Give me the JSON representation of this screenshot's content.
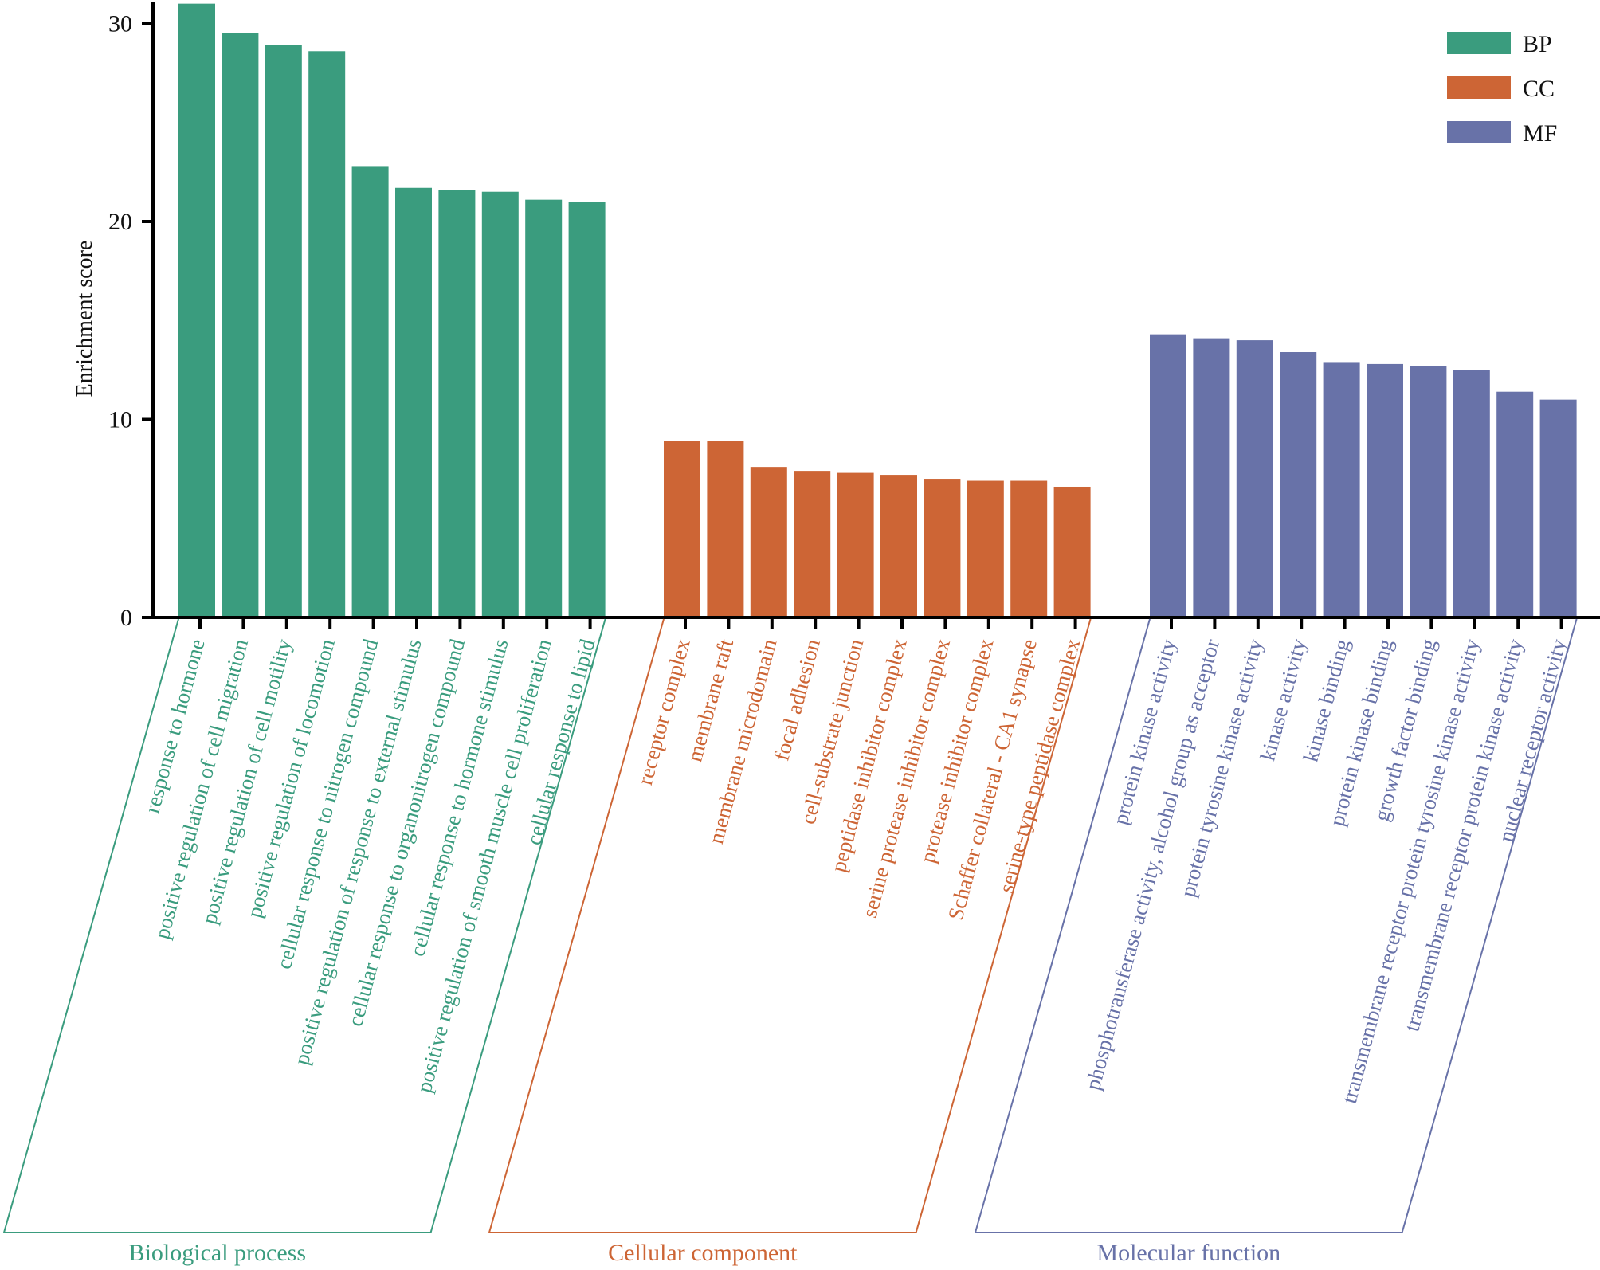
{
  "chart_data": {
    "type": "bar",
    "title": "",
    "xlabel": "",
    "ylabel": "Enrichment score",
    "ylim": [
      0,
      31
    ],
    "yticks": [
      0,
      10,
      20,
      30
    ],
    "grid": false,
    "legend": {
      "position": "top-right",
      "entries": [
        {
          "key": "BP",
          "label": "BP",
          "color": "#3a9c7e"
        },
        {
          "key": "CC",
          "label": "CC",
          "color": "#cd6535"
        },
        {
          "key": "MF",
          "label": "MF",
          "color": "#6872a8"
        }
      ]
    },
    "groups": [
      {
        "key": "BP",
        "name": "Biological process",
        "color": "#3a9c7e",
        "categories": [
          "response to hormone",
          "positive regulation of cell migration",
          "positive regulation of cell motility",
          "positive regulation of locomotion",
          "cellular response to nitrogen compound",
          "positive regulation of response to external stimulus",
          "cellular response to organonitrogen compound",
          "cellular response to hormone stimulus",
          "positive regulation of smooth muscle cell proliferation",
          "cellular response to lipid"
        ],
        "values": [
          31.0,
          29.5,
          28.9,
          28.6,
          22.8,
          21.7,
          21.6,
          21.5,
          21.1,
          21.0
        ]
      },
      {
        "key": "CC",
        "name": "Cellular component",
        "color": "#cd6535",
        "categories": [
          "receptor complex",
          "membrane raft",
          "membrane microdomain",
          "focal adhesion",
          "cell-substrate junction",
          "peptidase inhibitor complex",
          "serine protease inhibitor complex",
          "protease inhibitor complex",
          "Schaffer collateral - CA1 synapse",
          "serine-type peptidase complex"
        ],
        "values": [
          8.9,
          8.9,
          7.6,
          7.4,
          7.3,
          7.2,
          7.0,
          6.9,
          6.9,
          6.6
        ]
      },
      {
        "key": "MF",
        "name": "Molecular function",
        "color": "#6872a8",
        "categories": [
          "protein kinase activity",
          "phosphotransferase activity, alcohol group as acceptor",
          "protein tyrosine kinase activity",
          "kinase activity",
          "kinase binding",
          "protein kinase binding",
          "growth factor binding",
          "transmembrane receptor protein tyrosine kinase activity",
          "transmembrane receptor protein kinase activity",
          "nuclear receptor activity"
        ],
        "values": [
          14.3,
          14.1,
          14.0,
          13.4,
          12.9,
          12.8,
          12.7,
          12.5,
          11.4,
          11.0
        ]
      }
    ]
  }
}
